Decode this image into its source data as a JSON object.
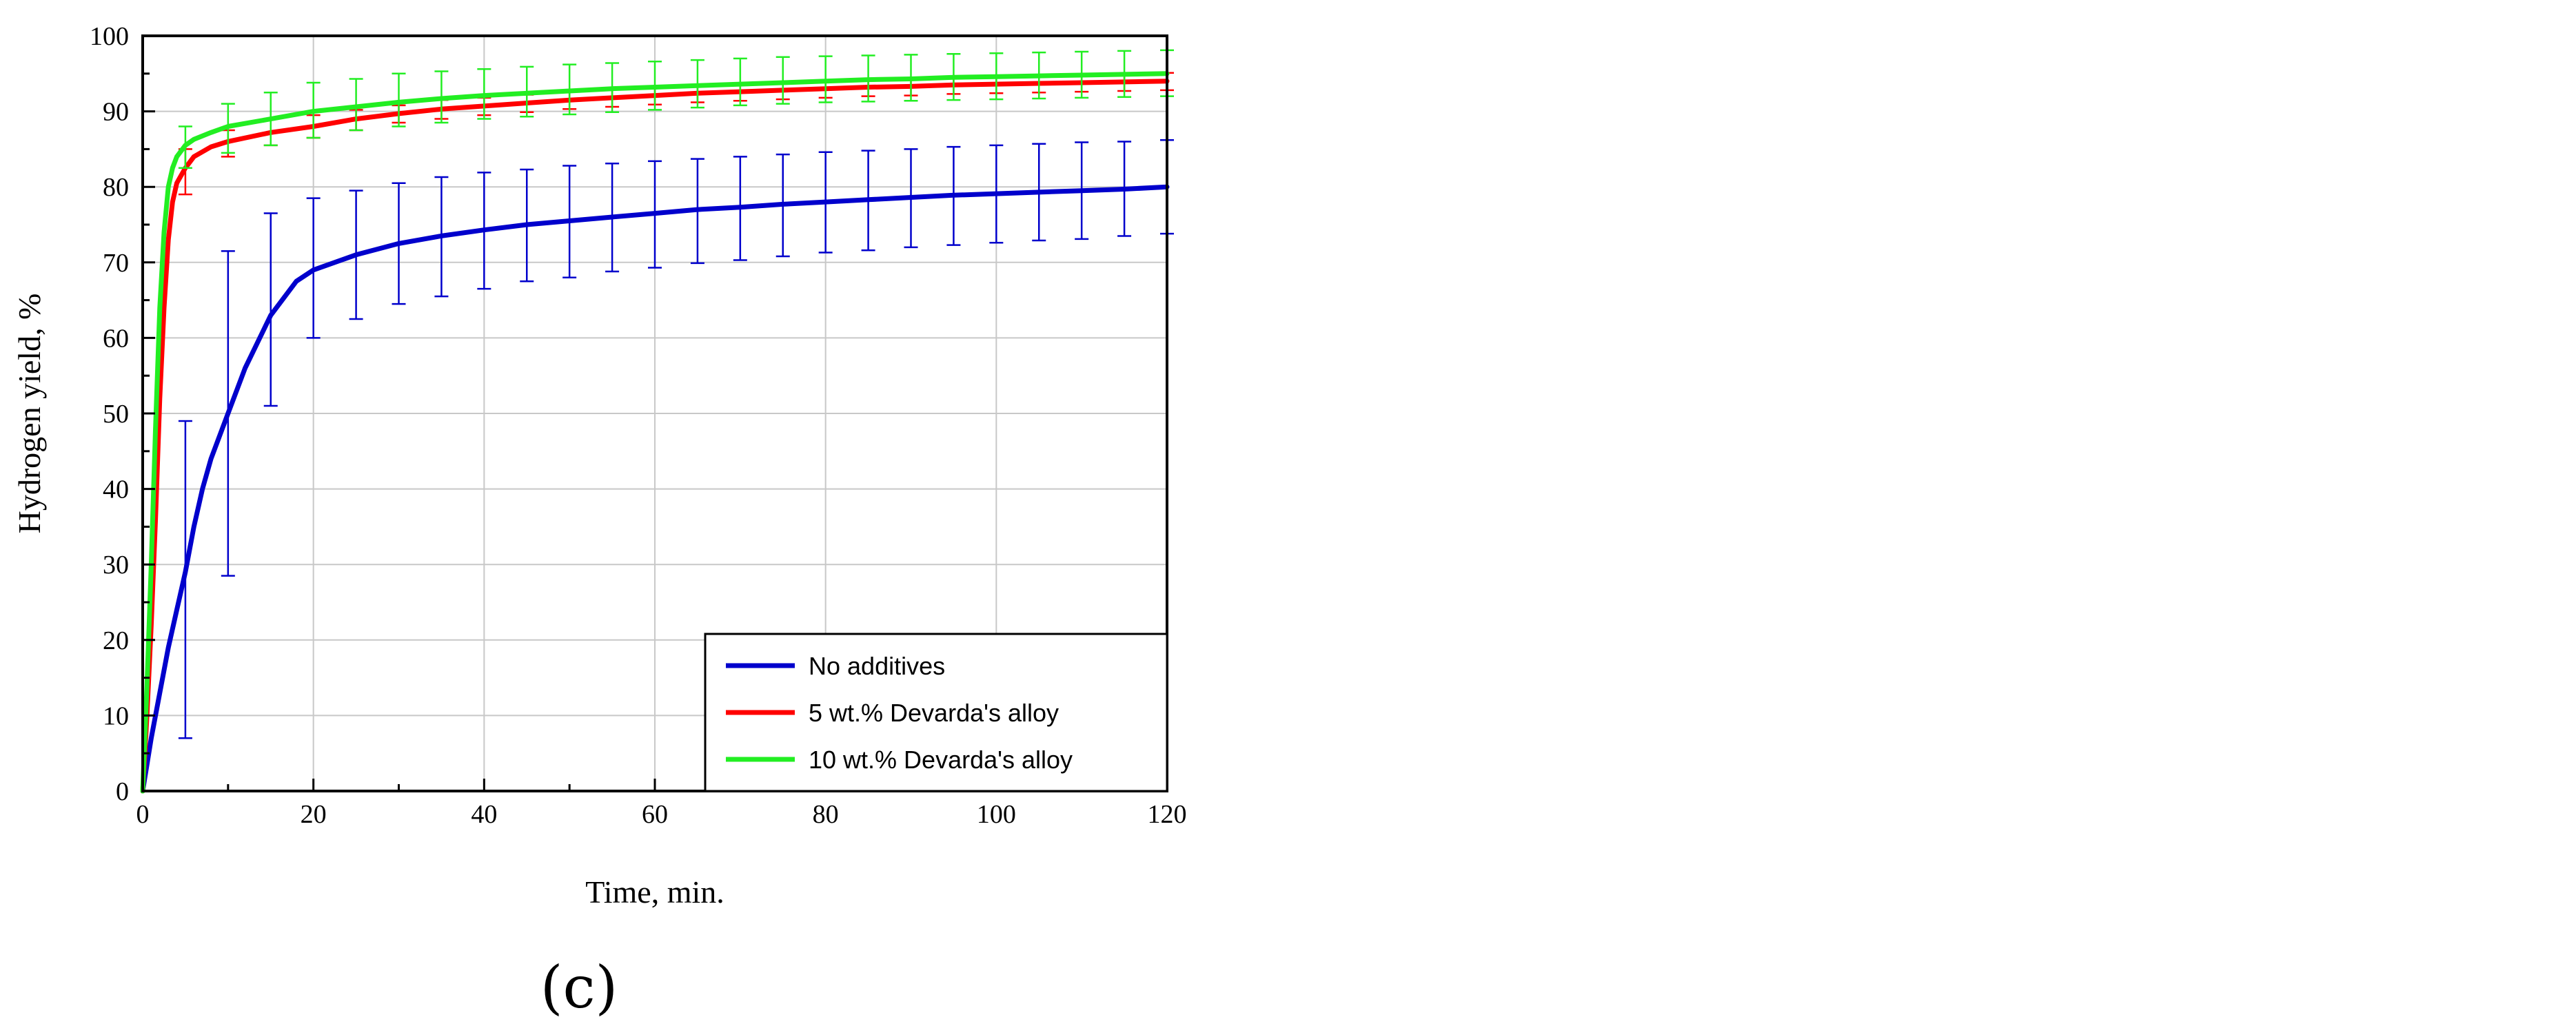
{
  "chart_data": {
    "type": "line",
    "title": "",
    "xlabel": "Time, min.",
    "ylabel": "Hydrogen yield, %",
    "panel_label": "(c)",
    "xlim": [
      0,
      120
    ],
    "ylim": [
      0,
      100
    ],
    "x_ticks": [
      0,
      20,
      40,
      60,
      80,
      100,
      120
    ],
    "y_ticks": [
      0,
      10,
      20,
      30,
      40,
      50,
      60,
      70,
      80,
      90,
      100
    ],
    "grid": true,
    "legend_position": "bottom-right",
    "series": [
      {
        "name": "No additives",
        "color": "#0000cc",
        "x": [
          0,
          1,
          2,
          3,
          4,
          5,
          6,
          7,
          8,
          10,
          12,
          15,
          18,
          20,
          25,
          30,
          35,
          40,
          45,
          50,
          55,
          60,
          65,
          70,
          75,
          80,
          85,
          90,
          95,
          100,
          105,
          110,
          115,
          120
        ],
        "y": [
          0,
          7,
          13,
          19,
          24,
          29,
          35,
          40,
          44,
          50,
          56,
          63,
          67.5,
          69,
          71,
          72.5,
          73.5,
          74.3,
          75,
          75.5,
          76,
          76.5,
          77,
          77.3,
          77.7,
          78,
          78.3,
          78.6,
          78.9,
          79.1,
          79.3,
          79.5,
          79.7,
          80
        ],
        "errorbars": {
          "x": [
            5,
            10,
            15,
            20,
            25,
            30,
            35,
            40,
            45,
            50,
            55,
            60,
            65,
            70,
            75,
            80,
            85,
            90,
            95,
            100,
            105,
            110,
            115,
            120
          ],
          "low": [
            7,
            28.5,
            51,
            60,
            62.5,
            64.5,
            65.5,
            66.5,
            67.5,
            68,
            68.8,
            69.3,
            69.9,
            70.3,
            70.8,
            71.3,
            71.6,
            72,
            72.3,
            72.6,
            72.9,
            73.1,
            73.5,
            73.8
          ],
          "high": [
            49,
            71.5,
            76.5,
            78.5,
            79.5,
            80.5,
            81.3,
            81.9,
            82.3,
            82.8,
            83.1,
            83.4,
            83.7,
            84,
            84.3,
            84.6,
            84.8,
            85,
            85.3,
            85.5,
            85.7,
            85.9,
            86,
            86.2
          ]
        }
      },
      {
        "name": "5 wt.% Devarda's alloy",
        "color": "#ff0000",
        "x": [
          0,
          0.5,
          1,
          1.5,
          2,
          2.5,
          3,
          3.5,
          4,
          5,
          6,
          8,
          10,
          15,
          20,
          25,
          30,
          35,
          40,
          45,
          50,
          55,
          60,
          65,
          70,
          75,
          80,
          85,
          90,
          95,
          100,
          105,
          110,
          115,
          120
        ],
        "y": [
          0,
          10,
          22,
          36,
          52,
          64,
          73,
          78,
          80.5,
          82.5,
          84,
          85.3,
          86,
          87.2,
          88,
          89,
          89.7,
          90.3,
          90.7,
          91.1,
          91.5,
          91.8,
          92.1,
          92.4,
          92.6,
          92.8,
          93,
          93.2,
          93.3,
          93.5,
          93.6,
          93.7,
          93.8,
          93.9,
          94
        ],
        "errorbars": {
          "x": [
            5,
            10,
            15,
            20,
            25,
            30,
            35,
            40,
            45,
            50,
            55,
            60,
            65,
            70,
            75,
            80,
            85,
            90,
            95,
            100,
            105,
            110,
            115,
            120
          ],
          "low": [
            79,
            84,
            85.5,
            86.5,
            87.5,
            88.5,
            89,
            89.5,
            89.9,
            90.3,
            90.6,
            90.9,
            91.2,
            91.4,
            91.6,
            91.8,
            92,
            92.1,
            92.3,
            92.4,
            92.5,
            92.6,
            92.7,
            92.8
          ],
          "high": [
            85,
            87.5,
            89,
            89.5,
            90.2,
            90.8,
            91.5,
            91.8,
            92.2,
            92.6,
            92.9,
            93.2,
            93.5,
            93.7,
            93.9,
            94.1,
            94.3,
            94.4,
            94.6,
            94.7,
            94.8,
            94.9,
            95,
            95.1
          ]
        }
      },
      {
        "name": "10 wt.% Devarda's alloy",
        "color": "#22ee22",
        "x": [
          0,
          0.5,
          1,
          1.5,
          2,
          2.5,
          3,
          3.5,
          4,
          5,
          6,
          8,
          10,
          15,
          20,
          25,
          30,
          35,
          40,
          45,
          50,
          55,
          60,
          65,
          70,
          75,
          80,
          85,
          90,
          95,
          100,
          105,
          110,
          115,
          120
        ],
        "y": [
          0,
          14,
          30,
          48,
          64,
          74,
          80,
          82.5,
          84,
          85.5,
          86.3,
          87.2,
          88,
          89,
          90,
          90.6,
          91.2,
          91.7,
          92.1,
          92.4,
          92.7,
          93,
          93.2,
          93.4,
          93.6,
          93.8,
          94,
          94.2,
          94.3,
          94.5,
          94.6,
          94.7,
          94.8,
          94.9,
          95
        ],
        "errorbars": {
          "x": [
            5,
            10,
            15,
            20,
            25,
            30,
            35,
            40,
            45,
            50,
            55,
            60,
            65,
            70,
            75,
            80,
            85,
            90,
            95,
            100,
            105,
            110,
            115,
            120
          ],
          "low": [
            82.5,
            84.5,
            85.5,
            86.5,
            87.5,
            88,
            88.5,
            89,
            89.3,
            89.6,
            89.9,
            90.2,
            90.5,
            90.8,
            91,
            91.2,
            91.3,
            91.4,
            91.5,
            91.6,
            91.7,
            91.8,
            91.9,
            92
          ],
          "high": [
            88,
            91,
            92.5,
            93.8,
            94.3,
            95,
            95.3,
            95.6,
            95.9,
            96.2,
            96.4,
            96.6,
            96.8,
            97,
            97.2,
            97.3,
            97.4,
            97.5,
            97.6,
            97.7,
            97.8,
            97.9,
            98,
            98.1
          ]
        }
      }
    ]
  }
}
